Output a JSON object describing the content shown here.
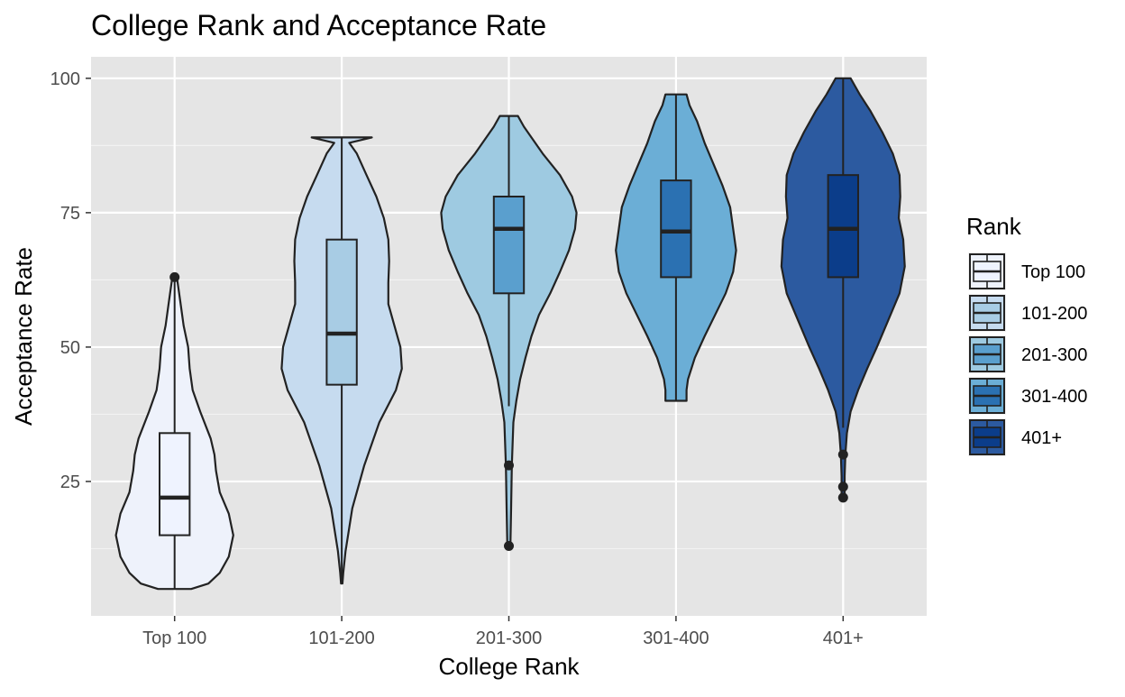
{
  "chart_data": {
    "type": "violin",
    "title": "College Rank and Acceptance Rate",
    "xlabel": "College Rank",
    "ylabel": "Acceptance Rate",
    "categories": [
      "Top 100",
      "101-200",
      "201-300",
      "301-400",
      "401+"
    ],
    "ylim": [
      0,
      104
    ],
    "yticks": [
      25,
      50,
      75,
      100
    ],
    "grid": true,
    "legend": {
      "title": "Rank",
      "placement": "right"
    },
    "colors": {
      "violin_fill": [
        "#eef2fb",
        "#c6dbef",
        "#9ecae1",
        "#6baed6",
        "#2c5aa0"
      ],
      "box_fill": [
        "#eff3ff",
        "#a8cce4",
        "#5a9fce",
        "#2b71b2",
        "#0b3d8a"
      ],
      "panel": "#e5e5e5",
      "line": "#222222"
    },
    "series": [
      {
        "name": "Top 100",
        "violin_profile": [
          [
            5,
            0.22
          ],
          [
            6,
            0.45
          ],
          [
            8,
            0.6
          ],
          [
            11,
            0.72
          ],
          [
            15,
            0.78
          ],
          [
            19,
            0.72
          ],
          [
            23,
            0.6
          ],
          [
            27,
            0.55
          ],
          [
            30,
            0.53
          ],
          [
            33,
            0.48
          ],
          [
            38,
            0.34
          ],
          [
            42,
            0.24
          ],
          [
            46,
            0.2
          ],
          [
            50,
            0.18
          ],
          [
            54,
            0.12
          ],
          [
            58,
            0.08
          ],
          [
            61,
            0.05
          ],
          [
            63,
            0.03
          ]
        ],
        "box": {
          "min": 5,
          "q1": 15,
          "median": 22,
          "q3": 34,
          "max": 63
        },
        "outliers": [
          63
        ]
      },
      {
        "name": "101-200",
        "violin_profile": [
          [
            6,
            0.01
          ],
          [
            8,
            0.02
          ],
          [
            12,
            0.05
          ],
          [
            20,
            0.14
          ],
          [
            28,
            0.3
          ],
          [
            36,
            0.5
          ],
          [
            42,
            0.72
          ],
          [
            46,
            0.8
          ],
          [
            50,
            0.78
          ],
          [
            54,
            0.7
          ],
          [
            58,
            0.62
          ],
          [
            62,
            0.62
          ],
          [
            66,
            0.63
          ],
          [
            70,
            0.62
          ],
          [
            74,
            0.56
          ],
          [
            78,
            0.46
          ],
          [
            82,
            0.33
          ],
          [
            86,
            0.2
          ],
          [
            88,
            0.1
          ],
          [
            89,
            0.4
          ]
        ],
        "box": {
          "min": 6,
          "q1": 43,
          "median": 52.5,
          "q3": 70,
          "max": 89
        },
        "outliers": []
      },
      {
        "name": "201-300",
        "violin_profile": [
          [
            13,
            0.02
          ],
          [
            20,
            0.03
          ],
          [
            28,
            0.04
          ],
          [
            36,
            0.06
          ],
          [
            40,
            0.1
          ],
          [
            44,
            0.15
          ],
          [
            48,
            0.22
          ],
          [
            52,
            0.3
          ],
          [
            56,
            0.4
          ],
          [
            60,
            0.55
          ],
          [
            64,
            0.68
          ],
          [
            68,
            0.8
          ],
          [
            72,
            0.88
          ],
          [
            75,
            0.9
          ],
          [
            78,
            0.84
          ],
          [
            82,
            0.68
          ],
          [
            86,
            0.45
          ],
          [
            89,
            0.3
          ],
          [
            91,
            0.2
          ],
          [
            93,
            0.12
          ]
        ],
        "box": {
          "min": 39,
          "q1": 60,
          "median": 72,
          "q3": 78,
          "max": 93
        },
        "outliers": [
          28,
          13
        ]
      },
      {
        "name": "301-400",
        "violin_profile": [
          [
            40,
            0.14
          ],
          [
            42,
            0.14
          ],
          [
            44,
            0.16
          ],
          [
            48,
            0.25
          ],
          [
            52,
            0.38
          ],
          [
            56,
            0.52
          ],
          [
            60,
            0.66
          ],
          [
            64,
            0.76
          ],
          [
            68,
            0.8
          ],
          [
            72,
            0.76
          ],
          [
            76,
            0.72
          ],
          [
            80,
            0.62
          ],
          [
            84,
            0.5
          ],
          [
            88,
            0.38
          ],
          [
            92,
            0.28
          ],
          [
            95,
            0.18
          ],
          [
            97,
            0.14
          ]
        ],
        "box": {
          "min": 40,
          "q1": 63,
          "median": 71.5,
          "q3": 81,
          "max": 97
        },
        "outliers": []
      },
      {
        "name": "401+",
        "violin_profile": [
          [
            22,
            0.02
          ],
          [
            26,
            0.02
          ],
          [
            30,
            0.03
          ],
          [
            34,
            0.05
          ],
          [
            38,
            0.1
          ],
          [
            42,
            0.2
          ],
          [
            46,
            0.32
          ],
          [
            50,
            0.45
          ],
          [
            55,
            0.6
          ],
          [
            60,
            0.75
          ],
          [
            65,
            0.82
          ],
          [
            70,
            0.8
          ],
          [
            74,
            0.74
          ],
          [
            78,
            0.76
          ],
          [
            82,
            0.75
          ],
          [
            86,
            0.66
          ],
          [
            90,
            0.52
          ],
          [
            94,
            0.36
          ],
          [
            97,
            0.22
          ],
          [
            100,
            0.1
          ]
        ],
        "box": {
          "min": 35,
          "q1": 63,
          "median": 72,
          "q3": 82,
          "max": 100
        },
        "outliers": [
          30,
          24,
          22
        ]
      }
    ]
  }
}
